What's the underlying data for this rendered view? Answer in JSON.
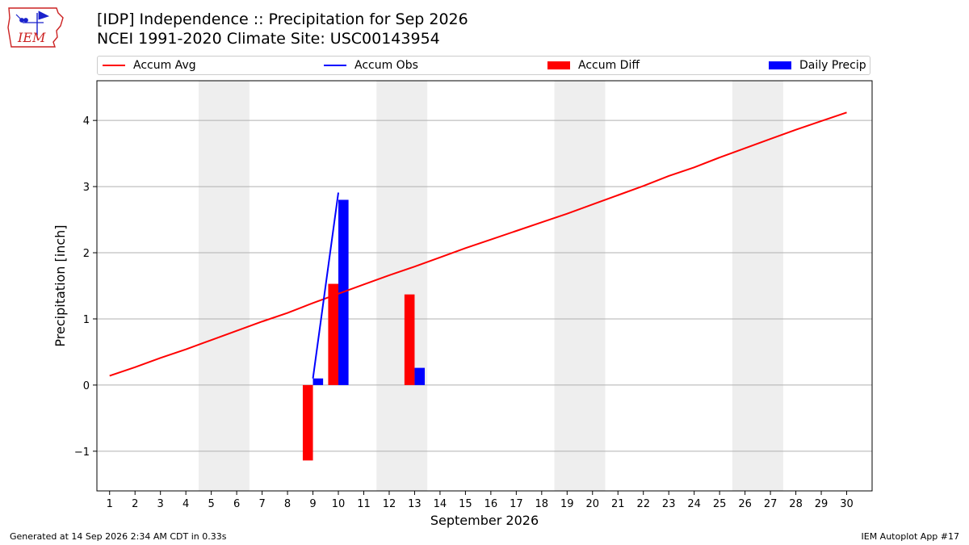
{
  "logo": {
    "text": "IEM",
    "red": "#cc2222",
    "blue": "#1a22cc"
  },
  "header": {
    "title_line1": "[IDP] Independence :: Precipitation for Sep 2026",
    "title_line2": "NCEI 1991-2020 Climate Site: USC00143954"
  },
  "legend": {
    "items": [
      {
        "label": "Accum Avg",
        "kind": "line",
        "color": "#ff0000"
      },
      {
        "label": "Accum Obs",
        "kind": "line",
        "color": "#0000ff"
      },
      {
        "label": "Accum Diff",
        "kind": "bar",
        "color": "#ff0000"
      },
      {
        "label": "Daily Precip",
        "kind": "bar",
        "color": "#0000ff"
      }
    ]
  },
  "chart_data": {
    "type": "bar",
    "title": "[IDP] Independence :: Precipitation for Sep 2026",
    "subtitle": "NCEI 1991-2020 Climate Site: USC00143954",
    "xlabel": "September 2026",
    "ylabel": "Precipitation [inch]",
    "xlim": [
      0.5,
      31.0
    ],
    "ylim": [
      -1.6,
      4.6
    ],
    "x_ticks": [
      1,
      2,
      3,
      4,
      5,
      6,
      7,
      8,
      9,
      10,
      11,
      12,
      13,
      14,
      15,
      16,
      17,
      18,
      19,
      20,
      21,
      22,
      23,
      24,
      25,
      26,
      27,
      28,
      29,
      30
    ],
    "x_tick_labels": [
      "1",
      "2",
      "3",
      "4",
      "5",
      "6",
      "7",
      "8",
      "9",
      "10",
      "11",
      "12",
      "13",
      "14",
      "15",
      "16",
      "17",
      "18",
      "19",
      "20",
      "21",
      "22",
      "23",
      "24",
      "25",
      "26",
      "27",
      "28",
      "29",
      "30"
    ],
    "y_ticks": [
      -1,
      0,
      1,
      2,
      3,
      4
    ],
    "y_tick_labels": [
      "−1",
      "0",
      "1",
      "2",
      "3",
      "4"
    ],
    "grid": "horizontal",
    "weekend_bands": [
      [
        4.5,
        6.5
      ],
      [
        11.5,
        13.5
      ],
      [
        18.5,
        20.5
      ],
      [
        25.5,
        27.5
      ]
    ],
    "weekend_band_color": "#eeeeee",
    "series": [
      {
        "name": "Accum Avg",
        "kind": "line",
        "color": "#ff0000",
        "x": [
          1,
          2,
          3,
          4,
          5,
          6,
          7,
          8,
          9,
          10,
          11,
          12,
          13,
          14,
          15,
          16,
          17,
          18,
          19,
          20,
          21,
          22,
          23,
          24,
          25,
          26,
          27,
          28,
          29,
          30
        ],
        "values": [
          0.14,
          0.27,
          0.41,
          0.54,
          0.68,
          0.82,
          0.96,
          1.09,
          1.24,
          1.38,
          1.52,
          1.66,
          1.79,
          1.93,
          2.07,
          2.2,
          2.33,
          2.46,
          2.59,
          2.73,
          2.87,
          3.01,
          3.16,
          3.29,
          3.44,
          3.58,
          3.72,
          3.86,
          3.99,
          4.12
        ]
      },
      {
        "name": "Accum Obs",
        "kind": "line",
        "color": "#0000ff",
        "x": [
          9,
          10
        ],
        "values": [
          0.1,
          2.91
        ]
      },
      {
        "name": "Accum Diff",
        "kind": "bar",
        "color": "#ff0000",
        "offset": -0.2,
        "width": 0.4,
        "x": [
          9,
          10,
          13
        ],
        "values": [
          -1.14,
          1.53,
          1.37
        ]
      },
      {
        "name": "Daily Precip",
        "kind": "bar",
        "color": "#0000ff",
        "offset": 0.2,
        "width": 0.4,
        "x": [
          9,
          10,
          13
        ],
        "values": [
          0.1,
          2.8,
          0.26
        ]
      }
    ]
  },
  "footer": {
    "left": "Generated at 14 Sep 2026 2:34 AM CDT in 0.33s",
    "right": "IEM Autoplot App #17"
  }
}
